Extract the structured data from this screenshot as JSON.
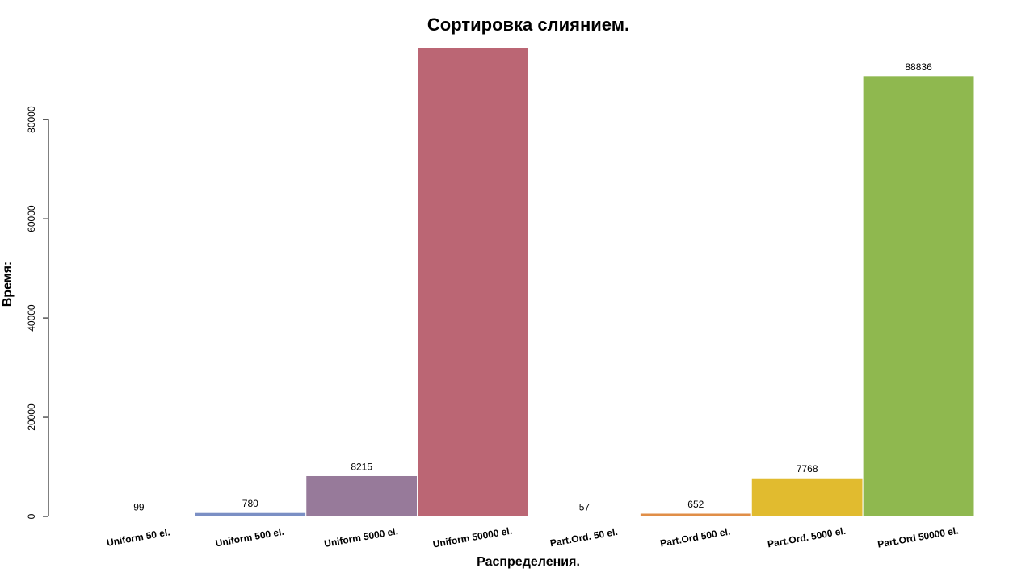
{
  "chart_data": {
    "type": "bar",
    "title": "Сортировка слиянием.",
    "xlabel": "Распределения.",
    "ylabel": "Время:",
    "ylim": [
      0,
      94500
    ],
    "yticks": [
      0,
      20000,
      40000,
      60000,
      80000
    ],
    "grid": false,
    "categories": [
      "Uniform 50 el.",
      "Uniform 500 el.",
      "Uniform 5000 el.",
      "Uniform 50000 el.",
      "Part.Ord. 50 el.",
      "Part.Ord 500 el.",
      "Part.Ord. 5000 el.",
      "Part.Ord 50000 el."
    ],
    "values": [
      99,
      780,
      8215,
      94500,
      57,
      652,
      7768,
      88836
    ],
    "value_labels": [
      "99",
      "780",
      "8215",
      "",
      "57",
      "652",
      "7768",
      "88836"
    ],
    "colors": [
      "#63b3a6",
      "#7b8fc4",
      "#977a9a",
      "#bb6674",
      "#7bcbe0",
      "#e08e48",
      "#e1bb2f",
      "#8fb84f"
    ]
  }
}
